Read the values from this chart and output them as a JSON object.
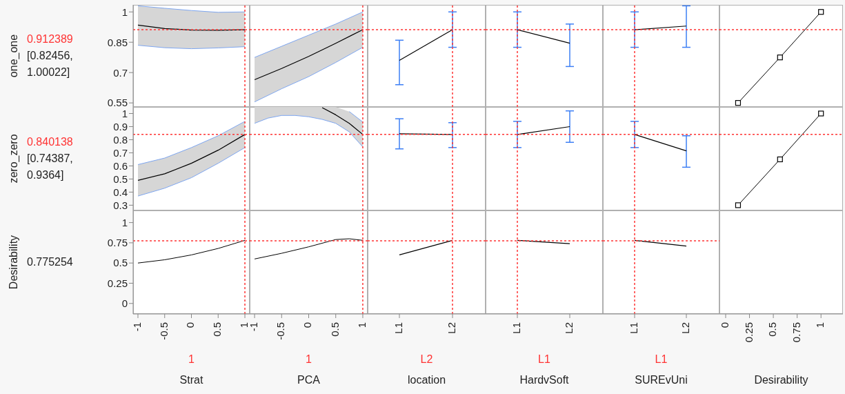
{
  "chart_data": [
    {
      "type": "line",
      "x": [
        -1,
        -0.5,
        0,
        0.5,
        1
      ],
      "series": [
        {
          "color": "#000000",
          "values": [
            0.935,
            0.918,
            0.91,
            0.909,
            0.912
          ],
          "lower": [
            0.835,
            0.823,
            0.818,
            0.822,
            0.828
          ],
          "upper": [
            1.03,
            1.018,
            1.007,
            0.998,
            1.0
          ]
        },
        {
          "type": "line",
          "color": "#7ea6f0",
          "values": [
            0.835,
            0.823,
            0.818,
            0.822,
            0.828
          ]
        },
        {
          "type": "line",
          "color": "#7ea6f0",
          "values": [
            1.03,
            1.018,
            1.007,
            0.998,
            1.0
          ]
        }
      ],
      "xlim": [
        -1.09,
        1.09
      ],
      "xticks": [
        -1,
        -0.5,
        0,
        0.5,
        1
      ],
      "ylim": [
        0.53,
        1.035
      ],
      "yticks": [
        0.55,
        0.7,
        0.85,
        1
      ],
      "tick_labels": "y",
      "ylabel": "one_one",
      "annotations": [
        "[0.82456, 1.00022]"
      ],
      "ref_lines": [
        {
          "axis": "y",
          "value": 0.912389,
          "label": "0.912389",
          "color": "#ff3333",
          "line_style": "dotted"
        },
        {
          "axis": "x",
          "value": 1,
          "color": "#ff3333",
          "line_style": "dotted"
        }
      ]
    },
    {
      "type": "line",
      "x": [
        -1,
        -0.5,
        0,
        0.5,
        1
      ],
      "series": [
        {
          "color": "#000000",
          "values": [
            0.665,
            0.72,
            0.78,
            0.845,
            0.912
          ],
          "lower": [
            0.555,
            0.62,
            0.68,
            0.75,
            0.825
          ],
          "upper": [
            0.775,
            0.83,
            0.885,
            0.94,
            1.0
          ]
        },
        {
          "type": "line",
          "color": "#7ea6f0",
          "values": [
            0.555,
            0.62,
            0.68,
            0.75,
            0.825
          ]
        },
        {
          "type": "line",
          "color": "#7ea6f0",
          "values": [
            0.775,
            0.83,
            0.885,
            0.94,
            1.0
          ]
        }
      ],
      "xlim": [
        -1.09,
        1.09
      ],
      "xticks": [
        -1,
        -0.5,
        0,
        0.5,
        1
      ],
      "ylim": [
        0.53,
        1.035
      ],
      "yticks": [
        0.55,
        0.7,
        0.85,
        1
      ],
      "tick_labels": false,
      "ref_lines": [
        {
          "axis": "y",
          "value": 0.912389,
          "color": "#ff3333",
          "line_style": "dotted"
        },
        {
          "axis": "x",
          "value": 1,
          "color": "#ff3333",
          "line_style": "dotted"
        }
      ]
    },
    {
      "type": "line",
      "categories": [
        "L1",
        "L2"
      ],
      "series": [
        {
          "color": "#000000",
          "values": [
            0.76,
            0.912
          ],
          "errors": [
            [
              0.64,
              0.86
            ],
            [
              0.825,
              1.0
            ]
          ]
        }
      ],
      "ylim": [
        0.53,
        1.035
      ],
      "yticks": [
        0.55,
        0.7,
        0.85,
        1
      ],
      "tick_labels": false,
      "ref_lines": [
        {
          "axis": "y",
          "value": 0.912389,
          "color": "#ff3333",
          "line_style": "dotted"
        },
        {
          "axis": "x",
          "value": "L2",
          "color": "#ff3333",
          "line_style": "dotted"
        }
      ]
    },
    {
      "type": "line",
      "categories": [
        "L1",
        "L2"
      ],
      "series": [
        {
          "color": "#000000",
          "values": [
            0.912,
            0.845
          ],
          "errors": [
            [
              0.825,
              1.0
            ],
            [
              0.73,
              0.94
            ]
          ]
        }
      ],
      "ylim": [
        0.53,
        1.035
      ],
      "yticks": [
        0.55,
        0.7,
        0.85,
        1
      ],
      "tick_labels": false,
      "ref_lines": [
        {
          "axis": "y",
          "value": 0.912389,
          "color": "#ff3333",
          "line_style": "dotted"
        },
        {
          "axis": "x",
          "value": "L1",
          "color": "#ff3333",
          "line_style": "dotted"
        }
      ]
    },
    {
      "type": "line",
      "categories": [
        "L1",
        "L2"
      ],
      "series": [
        {
          "color": "#000000",
          "values": [
            0.912,
            0.93
          ],
          "errors": [
            [
              0.825,
              1.0
            ],
            [
              0.825,
              1.03
            ]
          ]
        }
      ],
      "ylim": [
        0.53,
        1.035
      ],
      "yticks": [
        0.55,
        0.7,
        0.85,
        1
      ],
      "tick_labels": false,
      "ref_lines": [
        {
          "axis": "y",
          "value": 0.912389,
          "color": "#ff3333",
          "line_style": "dotted"
        },
        {
          "axis": "x",
          "value": "L1",
          "color": "#ff3333",
          "line_style": "dotted"
        }
      ]
    },
    {
      "type": "line",
      "x": [
        0.13,
        0.57,
        1
      ],
      "series": [
        {
          "color": "#000000",
          "values": [
            0.55,
            0.775,
            1.0
          ]
        }
      ],
      "marker": "square",
      "xlim": [
        -0.065,
        1.23
      ],
      "xticks": [
        0,
        0.25,
        0.5,
        0.75,
        1
      ],
      "ylim": [
        0.53,
        1.035
      ],
      "yticks": [
        0.55,
        0.7,
        0.85,
        1
      ],
      "tick_labels": false,
      "ref_lines": [
        {
          "axis": "y",
          "value": 0.912389,
          "color": "#ff3333",
          "line_style": "dotted"
        }
      ]
    },
    {
      "type": "line",
      "x": [
        -1,
        -0.5,
        0,
        0.5,
        1
      ],
      "series": [
        {
          "color": "#000000",
          "values": [
            0.49,
            0.54,
            0.62,
            0.72,
            0.84
          ],
          "lower": [
            0.37,
            0.43,
            0.51,
            0.62,
            0.74
          ],
          "upper": [
            0.61,
            0.66,
            0.74,
            0.83,
            0.94
          ]
        },
        {
          "type": "line",
          "color": "#7ea6f0",
          "values": [
            0.37,
            0.43,
            0.51,
            0.62,
            0.74
          ]
        },
        {
          "type": "line",
          "color": "#7ea6f0",
          "values": [
            0.61,
            0.66,
            0.74,
            0.83,
            0.94
          ]
        }
      ],
      "xlim": [
        -1.09,
        1.09
      ],
      "xticks": [
        -1,
        -0.5,
        0,
        0.5,
        1
      ],
      "ylim": [
        0.26,
        1.05
      ],
      "yticks": [
        0.3,
        0.4,
        0.5,
        0.6,
        0.7,
        0.8,
        0.9,
        1
      ],
      "tick_labels": "y",
      "ylabel": "zero_zero",
      "annotations": [
        "[0.74387, 0.9364]"
      ],
      "ref_lines": [
        {
          "axis": "y",
          "value": 0.840138,
          "label": "0.840138",
          "color": "#ff3333",
          "line_style": "dotted"
        },
        {
          "axis": "x",
          "value": 1,
          "color": "#ff3333",
          "line_style": "dotted"
        }
      ]
    },
    {
      "type": "line",
      "x": [
        -1,
        -0.75,
        -0.5,
        -0.25,
        0,
        0.25,
        0.5,
        0.75,
        1
      ],
      "series": [
        {
          "color": "#000000",
          "values": [
            null,
            null,
            null,
            null,
            null,
            1.045,
            0.99,
            0.925,
            0.84
          ],
          "lower": [
            0.925,
            0.965,
            0.985,
            0.985,
            0.975,
            0.955,
            0.925,
            0.86,
            0.745
          ],
          "upper": [
            1.05,
            1.05,
            1.05,
            1.05,
            1.05,
            1.05,
            1.05,
            1.015,
            0.935
          ]
        },
        {
          "type": "line",
          "color": "#7ea6f0",
          "values": [
            0.925,
            0.965,
            0.985,
            0.985,
            0.975,
            0.955,
            0.925,
            0.86,
            0.745
          ]
        },
        {
          "type": "line",
          "color": "#7ea6f0",
          "values": [
            null,
            null,
            null,
            null,
            null,
            null,
            null,
            1.015,
            0.935
          ]
        }
      ],
      "xlim": [
        -1.09,
        1.09
      ],
      "xticks": [
        -1,
        -0.5,
        0,
        0.5,
        1
      ],
      "ylim": [
        0.26,
        1.05
      ],
      "yticks": [
        0.3,
        0.4,
        0.5,
        0.6,
        0.7,
        0.8,
        0.9,
        1
      ],
      "tick_labels": false,
      "ref_lines": [
        {
          "axis": "y",
          "value": 0.840138,
          "color": "#ff3333",
          "line_style": "dotted"
        },
        {
          "axis": "x",
          "value": 1,
          "color": "#ff3333",
          "line_style": "dotted"
        }
      ]
    },
    {
      "type": "line",
      "categories": [
        "L1",
        "L2"
      ],
      "series": [
        {
          "color": "#000000",
          "values": [
            0.845,
            0.84
          ],
          "errors": [
            [
              0.73,
              0.96
            ],
            [
              0.74,
              0.93
            ]
          ]
        }
      ],
      "ylim": [
        0.26,
        1.05
      ],
      "yticks": [
        0.3,
        0.4,
        0.5,
        0.6,
        0.7,
        0.8,
        0.9,
        1
      ],
      "tick_labels": false,
      "ref_lines": [
        {
          "axis": "y",
          "value": 0.840138,
          "color": "#ff3333",
          "line_style": "dotted"
        },
        {
          "axis": "x",
          "value": "L2",
          "color": "#ff3333",
          "line_style": "dotted"
        }
      ]
    },
    {
      "type": "line",
      "categories": [
        "L1",
        "L2"
      ],
      "series": [
        {
          "color": "#000000",
          "values": [
            0.84,
            0.9
          ],
          "errors": [
            [
              0.74,
              0.94
            ],
            [
              0.78,
              1.02
            ]
          ]
        }
      ],
      "ylim": [
        0.26,
        1.05
      ],
      "yticks": [
        0.3,
        0.4,
        0.5,
        0.6,
        0.7,
        0.8,
        0.9,
        1
      ],
      "tick_labels": false,
      "ref_lines": [
        {
          "axis": "y",
          "value": 0.840138,
          "color": "#ff3333",
          "line_style": "dotted"
        },
        {
          "axis": "x",
          "value": "L1",
          "color": "#ff3333",
          "line_style": "dotted"
        }
      ]
    },
    {
      "type": "line",
      "categories": [
        "L1",
        "L2"
      ],
      "series": [
        {
          "color": "#000000",
          "values": [
            0.84,
            0.715
          ],
          "errors": [
            [
              0.74,
              0.94
            ],
            [
              0.59,
              0.83
            ]
          ]
        }
      ],
      "ylim": [
        0.26,
        1.05
      ],
      "yticks": [
        0.3,
        0.4,
        0.5,
        0.6,
        0.7,
        0.8,
        0.9,
        1
      ],
      "tick_labels": false,
      "ref_lines": [
        {
          "axis": "y",
          "value": 0.840138,
          "color": "#ff3333",
          "line_style": "dotted"
        },
        {
          "axis": "x",
          "value": "L1",
          "color": "#ff3333",
          "line_style": "dotted"
        }
      ]
    },
    {
      "type": "line",
      "x": [
        0.13,
        0.57,
        1
      ],
      "series": [
        {
          "color": "#000000",
          "values": [
            0.3,
            0.65,
            1.0
          ]
        }
      ],
      "marker": "square",
      "xlim": [
        -0.065,
        1.23
      ],
      "xticks": [
        0,
        0.25,
        0.5,
        0.75,
        1
      ],
      "ylim": [
        0.26,
        1.05
      ],
      "yticks": [
        0.3,
        0.4,
        0.5,
        0.6,
        0.7,
        0.8,
        0.9,
        1
      ],
      "tick_labels": false,
      "ref_lines": [
        {
          "axis": "y",
          "value": 0.840138,
          "color": "#ff3333",
          "line_style": "dotted"
        }
      ]
    },
    {
      "type": "line",
      "x": [
        -1,
        -0.5,
        0,
        0.5,
        1
      ],
      "series": [
        {
          "color": "#000000",
          "values": [
            0.5,
            0.54,
            0.6,
            0.68,
            0.78
          ]
        }
      ],
      "xlim": [
        -1.09,
        1.09
      ],
      "xticks": [
        -1,
        -0.5,
        0,
        0.5,
        1
      ],
      "ylim": [
        -0.13,
        1.15
      ],
      "yticks": [
        0,
        0.25,
        0.5,
        0.75,
        1
      ],
      "ylabel": "Desirability",
      "xlabel": "Strat",
      "annotations": [
        "0.775254"
      ],
      "ref_lines": [
        {
          "axis": "y",
          "value": 0.775254,
          "color": "#ff3333",
          "line_style": "dotted"
        },
        {
          "axis": "x",
          "value": 1,
          "label": "1",
          "color": "#ff3333",
          "line_style": "dotted"
        }
      ]
    },
    {
      "type": "line",
      "x": [
        -1,
        -0.5,
        0,
        0.5,
        0.75,
        1
      ],
      "series": [
        {
          "color": "#000000",
          "values": [
            0.55,
            0.62,
            0.7,
            0.79,
            0.8,
            0.78
          ]
        }
      ],
      "xlim": [
        -1.09,
        1.09
      ],
      "xticks": [
        -1,
        -0.5,
        0,
        0.5,
        1
      ],
      "ylim": [
        -0.13,
        1.15
      ],
      "yticks": [
        0,
        0.25,
        0.5,
        0.75,
        1
      ],
      "tick_labels": "x",
      "xlabel": "PCA",
      "ref_lines": [
        {
          "axis": "y",
          "value": 0.775254,
          "color": "#ff3333",
          "line_style": "dotted"
        },
        {
          "axis": "x",
          "value": 1,
          "label": "1",
          "color": "#ff3333",
          "line_style": "dotted"
        }
      ]
    },
    {
      "type": "line",
      "categories": [
        "L1",
        "L2"
      ],
      "series": [
        {
          "color": "#000000",
          "values": [
            0.6,
            0.78
          ]
        }
      ],
      "ylim": [
        -0.13,
        1.15
      ],
      "yticks": [
        0,
        0.25,
        0.5,
        0.75,
        1
      ],
      "tick_labels": "x",
      "xlabel": "location",
      "ref_lines": [
        {
          "axis": "y",
          "value": 0.775254,
          "color": "#ff3333",
          "line_style": "dotted"
        },
        {
          "axis": "x",
          "value": "L2",
          "label": "L2",
          "color": "#ff3333",
          "line_style": "dotted"
        }
      ]
    },
    {
      "type": "line",
      "categories": [
        "L1",
        "L2"
      ],
      "series": [
        {
          "color": "#000000",
          "values": [
            0.78,
            0.74
          ]
        }
      ],
      "ylim": [
        -0.13,
        1.15
      ],
      "yticks": [
        0,
        0.25,
        0.5,
        0.75,
        1
      ],
      "tick_labels": "x",
      "xlabel": "HardvSoft",
      "ref_lines": [
        {
          "axis": "y",
          "value": 0.775254,
          "color": "#ff3333",
          "line_style": "dotted"
        },
        {
          "axis": "x",
          "value": "L1",
          "label": "L1",
          "color": "#ff3333",
          "line_style": "dotted"
        }
      ]
    },
    {
      "type": "line",
      "categories": [
        "L1",
        "L2"
      ],
      "series": [
        {
          "color": "#000000",
          "values": [
            0.78,
            0.71
          ]
        }
      ],
      "ylim": [
        -0.13,
        1.15
      ],
      "yticks": [
        0,
        0.25,
        0.5,
        0.75,
        1
      ],
      "tick_labels": "x",
      "xlabel": "SUREvUni",
      "ref_lines": [
        {
          "axis": "y",
          "value": 0.775254,
          "color": "#ff3333",
          "line_style": "dotted"
        },
        {
          "axis": "x",
          "value": "L1",
          "label": "L1",
          "color": "#ff3333",
          "line_style": "dotted"
        }
      ]
    },
    {
      "type": "line",
      "xlim": [
        -0.065,
        1.23
      ],
      "xticks": [
        0,
        0.25,
        0.5,
        0.75,
        1
      ],
      "ylim": [
        -0.13,
        1.15
      ],
      "yticks": [
        0,
        0.25,
        0.5,
        0.75,
        1
      ],
      "tick_labels": "x",
      "xlabel": "Desirability"
    }
  ]
}
